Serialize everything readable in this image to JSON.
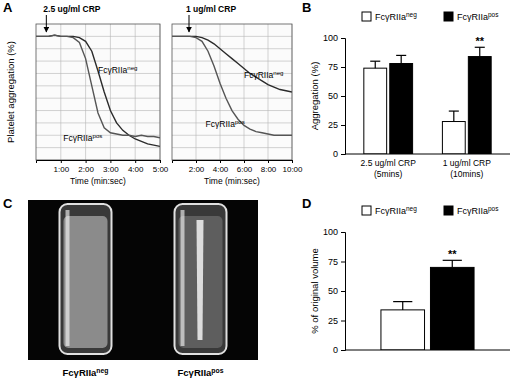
{
  "chart_data": [
    {
      "type": "line",
      "title": "A",
      "x": [
        0,
        15,
        30,
        45,
        60,
        75,
        90,
        105,
        120,
        135,
        150,
        165,
        180,
        195,
        210,
        225,
        240,
        255,
        270,
        285,
        300
      ],
      "xlim": [
        0,
        300
      ],
      "xticks": [
        {
          "value": 60,
          "label": "1:00"
        },
        {
          "value": 120,
          "label": "2:00"
        },
        {
          "value": 180,
          "label": "3:00"
        },
        {
          "value": 240,
          "label": "4:00"
        },
        {
          "value": 300,
          "label": "5:00"
        }
      ],
      "ylim": [
        100,
        -10
      ],
      "yticks": [
        0,
        10,
        20,
        30,
        40,
        50,
        60,
        70,
        80,
        90,
        100
      ],
      "grid": true,
      "tick_labels": "x",
      "x_label": "Time (min:sec)",
      "y_label": "Platelet aggregation (%)",
      "annotations": [
        {
          "text": "2.5 ug/ml CRP",
          "x": 25
        }
      ],
      "series": [
        {
          "name": "FcγRIIa",
          "name_sup": "neg",
          "color": "#2b2b2b",
          "values": [
            0,
            0,
            0,
            -1,
            0,
            0,
            0,
            1,
            4,
            12,
            28,
            45,
            60,
            70,
            76,
            80,
            83,
            85,
            87,
            88,
            89
          ]
        },
        {
          "name": "FcγRIIa",
          "name_sup": "pos",
          "color": "#555555",
          "values": [
            0,
            0,
            0,
            -1,
            0,
            0,
            1,
            5,
            18,
            40,
            62,
            74,
            78,
            79,
            80,
            80,
            81,
            80,
            81,
            81,
            82
          ]
        }
      ]
    },
    {
      "type": "line",
      "x": [
        0,
        30,
        60,
        90,
        120,
        150,
        180,
        210,
        240,
        270,
        300,
        330,
        360,
        390,
        420,
        450,
        480,
        510,
        540,
        570,
        600
      ],
      "xlim": [
        0,
        600
      ],
      "xticks": [
        {
          "value": 120,
          "label": "2:00"
        },
        {
          "value": 240,
          "label": "4:00"
        },
        {
          "value": 360,
          "label": "6:00"
        },
        {
          "value": 480,
          "label": "8:00"
        },
        {
          "value": 600,
          "label": "10:00"
        }
      ],
      "ylim": [
        100,
        -10
      ],
      "yticks": [
        0,
        10,
        20,
        30,
        40,
        50,
        60,
        70,
        80,
        90,
        100
      ],
      "grid": true,
      "tick_labels": "x",
      "x_label": "Time (min:sec)",
      "annotations": [
        {
          "text": "1 ug/ml CRP",
          "x": 85
        }
      ],
      "series": [
        {
          "name": "FcγRIIa",
          "name_sup": "neg",
          "color": "#2b2b2b",
          "values": [
            0,
            0,
            0,
            0,
            0,
            1,
            3,
            6,
            10,
            14,
            18,
            22,
            26,
            30,
            33,
            36,
            39,
            41,
            43,
            44,
            45
          ]
        },
        {
          "name": "FcγRIIa",
          "name_sup": "pos",
          "color": "#555555",
          "values": [
            0,
            0,
            0,
            0,
            1,
            4,
            12,
            24,
            38,
            50,
            60,
            67,
            72,
            75,
            77,
            78,
            79,
            80,
            80,
            80,
            80
          ]
        }
      ]
    },
    {
      "type": "bar",
      "title": "B",
      "categories": [
        [
          "2.5 ug/ml CRP",
          "(5mins)"
        ],
        [
          "1 ug/ml CRP",
          "(10mins)"
        ]
      ],
      "ylim": [
        0,
        100
      ],
      "yticks": [
        0,
        25,
        50,
        75,
        100
      ],
      "y_label": "Aggregation (%)",
      "legend": "top",
      "annotations": [
        {
          "text": "**",
          "series": 1,
          "category": 1
        }
      ],
      "series": [
        {
          "name": "FcγRIIa",
          "name_sup": "neg",
          "color": "#ffffff",
          "values": [
            74,
            28
          ],
          "errors": [
            6,
            9
          ]
        },
        {
          "name": "FcγRIIa",
          "name_sup": "pos",
          "color": "#000000",
          "values": [
            78,
            84
          ],
          "errors": [
            7,
            8
          ]
        }
      ]
    },
    {
      "type": "image",
      "title": "C",
      "labels": [
        {
          "name": "FcγRIIa",
          "name_sup": "neg"
        },
        {
          "name": "FcγRIIa",
          "name_sup": "pos"
        }
      ]
    },
    {
      "type": "bar",
      "title": "D",
      "categories": [
        null
      ],
      "ylim": [
        0,
        100
      ],
      "yticks": [
        0,
        25,
        50,
        75,
        100
      ],
      "y_label": "% of original volume",
      "legend": "top",
      "annotations": [
        {
          "text": "**",
          "series": 1,
          "category": 0
        }
      ],
      "series": [
        {
          "name": "FcγRIIa",
          "name_sup": "neg",
          "color": "#ffffff",
          "values": [
            34
          ],
          "errors": [
            7
          ]
        },
        {
          "name": "FcγRIIa",
          "name_sup": "pos",
          "color": "#000000",
          "values": [
            70
          ],
          "errors": [
            6
          ]
        }
      ]
    }
  ]
}
